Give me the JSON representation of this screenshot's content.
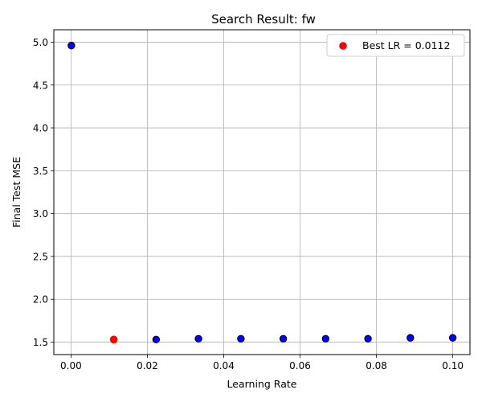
{
  "chart_data": {
    "type": "scatter",
    "title": "Search Result: fw",
    "xlabel": "Learning Rate",
    "ylabel": "Final Test MSE",
    "xlim": [
      -0.0045,
      0.1045
    ],
    "ylim": [
      1.355,
      5.145
    ],
    "xticks": [
      0.0,
      0.02,
      0.04,
      0.06,
      0.08,
      0.1
    ],
    "xtick_labels": [
      "0.00",
      "0.02",
      "0.04",
      "0.06",
      "0.08",
      "0.10"
    ],
    "yticks": [
      1.5,
      2.0,
      2.5,
      3.0,
      3.5,
      4.0,
      4.5,
      5.0
    ],
    "ytick_labels": [
      "1.5",
      "2.0",
      "2.5",
      "3.0",
      "3.5",
      "4.0",
      "4.5",
      "5.0"
    ],
    "grid": true,
    "legend_position": "top-right",
    "series": [
      {
        "color": "#0000ff",
        "edge_color": "#000000",
        "x": [
          0.0001,
          0.0112,
          0.0223,
          0.0334,
          0.0445,
          0.0556,
          0.0667,
          0.0778,
          0.0889,
          0.1
        ],
        "y": [
          4.96,
          1.53,
          1.53,
          1.54,
          1.54,
          1.54,
          1.54,
          1.54,
          1.55,
          1.55
        ]
      },
      {
        "name": "Best LR = 0.0112",
        "color": "#ff0000",
        "x": [
          0.0112
        ],
        "y": [
          1.53
        ]
      }
    ]
  }
}
